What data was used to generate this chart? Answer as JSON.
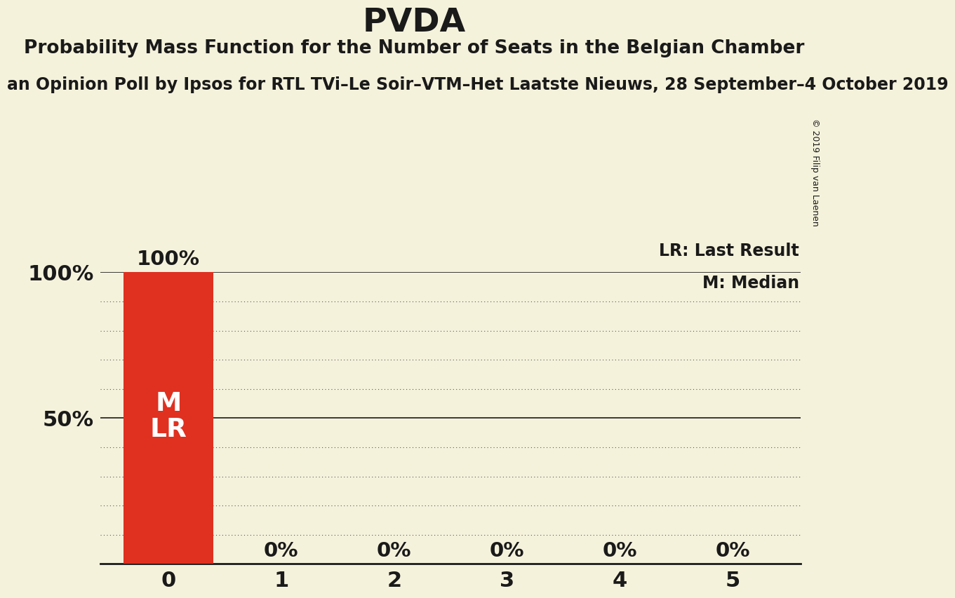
{
  "title": "PVDA",
  "subtitle": "Probability Mass Function for the Number of Seats in the Belgian Chamber",
  "subsubtitle": "an Opinion Poll by Ipsos for RTL TVi–Le Soir–VTM–Het Laatste Nieuws, 28 September–4 October 2019",
  "copyright": "© 2019 Filip van Laenen",
  "categories": [
    0,
    1,
    2,
    3,
    4,
    5
  ],
  "values": [
    1.0,
    0.0,
    0.0,
    0.0,
    0.0,
    0.0
  ],
  "bar_color": "#e03020",
  "background_color": "#f5f2dc",
  "text_color": "#1a1a1a",
  "bar_label_color": "#ffffff",
  "legend_lr": "LR: Last Result",
  "legend_m": "M: Median",
  "title_fontsize": 34,
  "subtitle_fontsize": 19,
  "subsubtitle_fontsize": 17,
  "axis_tick_fontsize": 22,
  "bar_label_fontsize": 21,
  "bar_inside_fontsize": 27,
  "legend_fontsize": 17,
  "copyright_fontsize": 9
}
